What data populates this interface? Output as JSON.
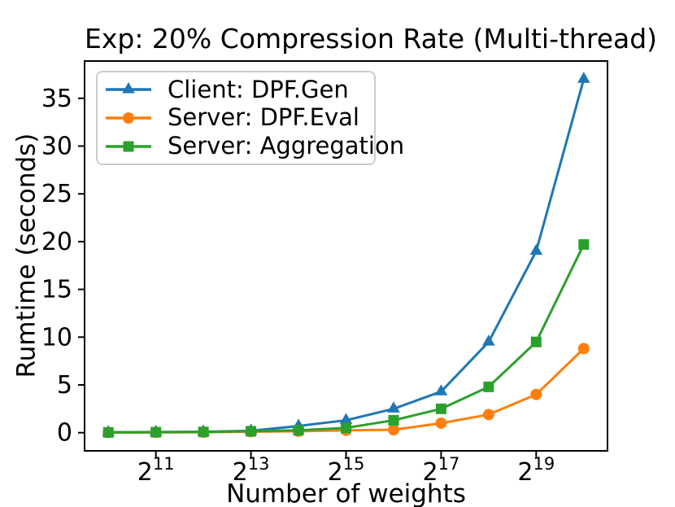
{
  "figure": {
    "background_color": "#ffffff",
    "text_color": "#000000",
    "spine_color": "#000000"
  },
  "chart_data": {
    "type": "line",
    "title": "Exp: 20% Compression Rate (Multi-thread)",
    "xlabel": "Number of weights",
    "ylabel": "Rumtime (seconds)",
    "grid": false,
    "x_axis": {
      "scale": "log2",
      "tick_base": "2",
      "tick_exponents": [
        11,
        13,
        15,
        17,
        19
      ],
      "xlim_exponents": [
        9.5,
        20.5
      ]
    },
    "y_axis": {
      "ticks": [
        0,
        5,
        10,
        15,
        20,
        25,
        30,
        35
      ],
      "ylim": [
        -1.9,
        38.9
      ]
    },
    "x_exponents": [
      10,
      11,
      12,
      13,
      14,
      15,
      16,
      17,
      18,
      19,
      20
    ],
    "series": [
      {
        "name": "Client: DPF.Gen",
        "color": "#1f77b4",
        "marker": "triangle",
        "values": [
          0.05,
          0.07,
          0.1,
          0.2,
          0.7,
          1.3,
          2.5,
          4.3,
          9.5,
          19.0,
          37.0
        ]
      },
      {
        "name": "Server: DPF.Eval",
        "color": "#ff7f0e",
        "marker": "circle",
        "values": [
          0.02,
          0.03,
          0.05,
          0.1,
          0.15,
          0.25,
          0.3,
          1.0,
          1.9,
          4.0,
          8.8
        ]
      },
      {
        "name": "Server: Aggregation",
        "color": "#2ca02c",
        "marker": "square",
        "values": [
          0.03,
          0.05,
          0.08,
          0.15,
          0.25,
          0.5,
          1.3,
          2.5,
          4.8,
          9.5,
          19.7
        ]
      }
    ],
    "legend": {
      "position": "upper-left",
      "entries": [
        "Client: DPF.Gen",
        "Server: DPF.Eval",
        "Server: Aggregation"
      ]
    }
  }
}
